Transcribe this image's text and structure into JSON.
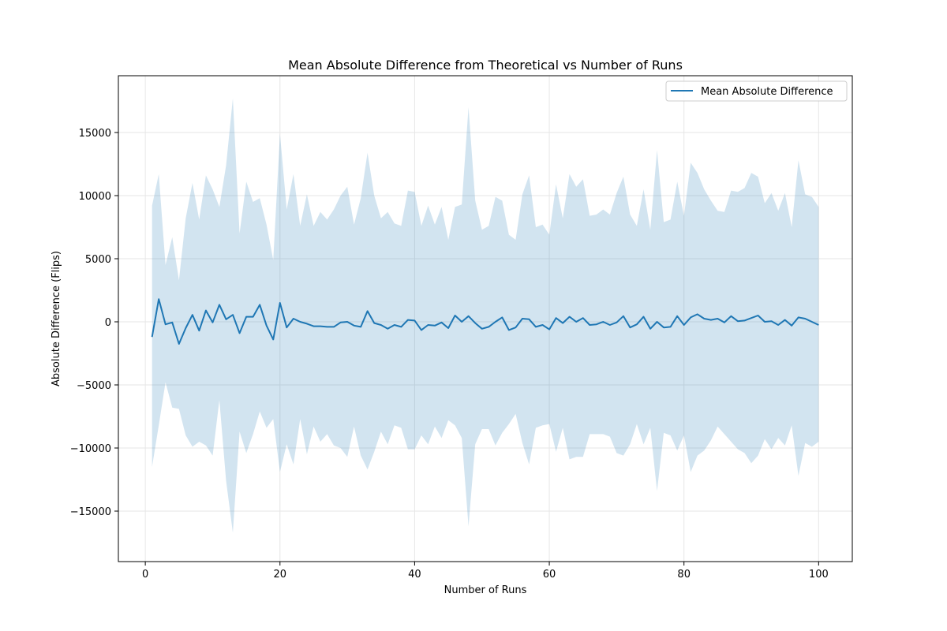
{
  "chart_data": {
    "type": "line",
    "title": "Mean Absolute Difference from Theoretical vs Number of Runs",
    "xlabel": "Number of Runs",
    "ylabel": "Absolute Difference (Flips)",
    "xlim": [
      -4,
      105
    ],
    "ylim": [
      -19000,
      19500
    ],
    "xticks": [
      0,
      20,
      40,
      60,
      80,
      100
    ],
    "yticks": [
      -15000,
      -10000,
      -5000,
      0,
      5000,
      10000,
      15000
    ],
    "ytick_labels": [
      "−15000",
      "−10000",
      "−5000",
      "0",
      "5000",
      "10000",
      "15000"
    ],
    "grid": true,
    "legend_position": "top-right",
    "colors": {
      "line": "#1f77b4",
      "band": "#1f77b4",
      "grid": "#e6e6e6"
    },
    "series": [
      {
        "name": "Mean Absolute Difference",
        "x": [
          1,
          2,
          3,
          4,
          5,
          6,
          7,
          8,
          9,
          10,
          11,
          12,
          13,
          14,
          15,
          16,
          17,
          18,
          19,
          20,
          21,
          22,
          23,
          24,
          25,
          26,
          27,
          28,
          29,
          30,
          31,
          32,
          33,
          34,
          35,
          36,
          37,
          38,
          39,
          40,
          41,
          42,
          43,
          44,
          45,
          46,
          47,
          48,
          49,
          50,
          51,
          52,
          53,
          54,
          55,
          56,
          57,
          58,
          59,
          60,
          61,
          62,
          63,
          64,
          65,
          66,
          67,
          68,
          69,
          70,
          71,
          72,
          73,
          74,
          75,
          76,
          77,
          78,
          79,
          80,
          81,
          82,
          83,
          84,
          85,
          86,
          87,
          88,
          89,
          90,
          91,
          92,
          93,
          94,
          95,
          96,
          97,
          98,
          99,
          100
        ],
        "values": [
          -1200,
          1800,
          -200,
          -50,
          -1750,
          -500,
          550,
          -700,
          900,
          -50,
          1350,
          200,
          550,
          -900,
          400,
          400,
          1350,
          -300,
          -1400,
          1500,
          -450,
          250,
          0,
          -150,
          -350,
          -350,
          -400,
          -400,
          -50,
          0,
          -300,
          -400,
          850,
          -100,
          -250,
          -550,
          -250,
          -400,
          150,
          100,
          -650,
          -250,
          -300,
          -50,
          -500,
          500,
          0,
          450,
          -100,
          -550,
          -400,
          0,
          350,
          -650,
          -450,
          250,
          200,
          -400,
          -250,
          -600,
          300,
          -100,
          400,
          0,
          300,
          -250,
          -200,
          0,
          -250,
          -50,
          450,
          -450,
          -200,
          400,
          -550,
          0,
          -450,
          -400,
          450,
          -250,
          350,
          600,
          250,
          150,
          250,
          -50,
          450,
          50,
          100,
          300,
          500,
          0,
          50,
          -250,
          150,
          -300,
          350,
          250,
          0,
          -250
        ],
        "upper": [
          9200,
          11700,
          4500,
          6700,
          3300,
          8200,
          11000,
          8100,
          11600,
          10500,
          9100,
          12400,
          17700,
          7000,
          11100,
          9500,
          9800,
          7700,
          4900,
          14900,
          8900,
          11700,
          7600,
          10100,
          7600,
          8700,
          8100,
          8900,
          10000,
          10700,
          7700,
          9800,
          13400,
          10000,
          8200,
          8700,
          7800,
          7600,
          10400,
          10300,
          7600,
          9200,
          7700,
          9100,
          6500,
          9100,
          9300,
          17000,
          9600,
          7300,
          7600,
          9900,
          9600,
          6900,
          6500,
          10100,
          11600,
          7500,
          7700,
          6900,
          10900,
          8200,
          11700,
          10700,
          11300,
          8400,
          8500,
          8900,
          8500,
          10200,
          11500,
          8500,
          7600,
          10500,
          7300,
          13600,
          7900,
          8100,
          11100,
          8400,
          12600,
          11800,
          10500,
          9600,
          8800,
          8700,
          10400,
          10300,
          10600,
          11800,
          11500,
          9400,
          10200,
          8800,
          10200,
          7500,
          12800,
          10100,
          9900,
          9100
        ],
        "lower": [
          -11500,
          -8200,
          -4800,
          -6800,
          -6900,
          -9000,
          -9900,
          -9500,
          -9800,
          -10600,
          -6200,
          -12600,
          -16700,
          -8700,
          -10400,
          -8900,
          -7100,
          -8400,
          -7700,
          -11900,
          -9700,
          -11300,
          -7700,
          -10500,
          -8300,
          -9500,
          -8900,
          -9800,
          -10000,
          -10700,
          -8300,
          -10600,
          -11700,
          -10300,
          -8700,
          -9700,
          -8200,
          -8400,
          -10100,
          -10100,
          -9000,
          -9700,
          -8300,
          -9200,
          -7800,
          -8200,
          -9200,
          -16200,
          -9700,
          -8500,
          -8500,
          -9800,
          -8800,
          -8100,
          -7300,
          -9600,
          -11300,
          -8400,
          -8200,
          -8100,
          -10300,
          -8400,
          -10900,
          -10700,
          -10700,
          -8900,
          -8900,
          -8900,
          -9100,
          -10400,
          -10600,
          -9700,
          -8100,
          -9700,
          -8400,
          -13400,
          -8800,
          -9000,
          -10200,
          -9000,
          -11900,
          -10600,
          -10200,
          -9400,
          -8300,
          -8900,
          -9500,
          -10100,
          -10400,
          -11200,
          -10600,
          -9300,
          -10100,
          -9200,
          -9800,
          -8200,
          -12200,
          -9600,
          -9900,
          -9500
        ]
      }
    ]
  }
}
